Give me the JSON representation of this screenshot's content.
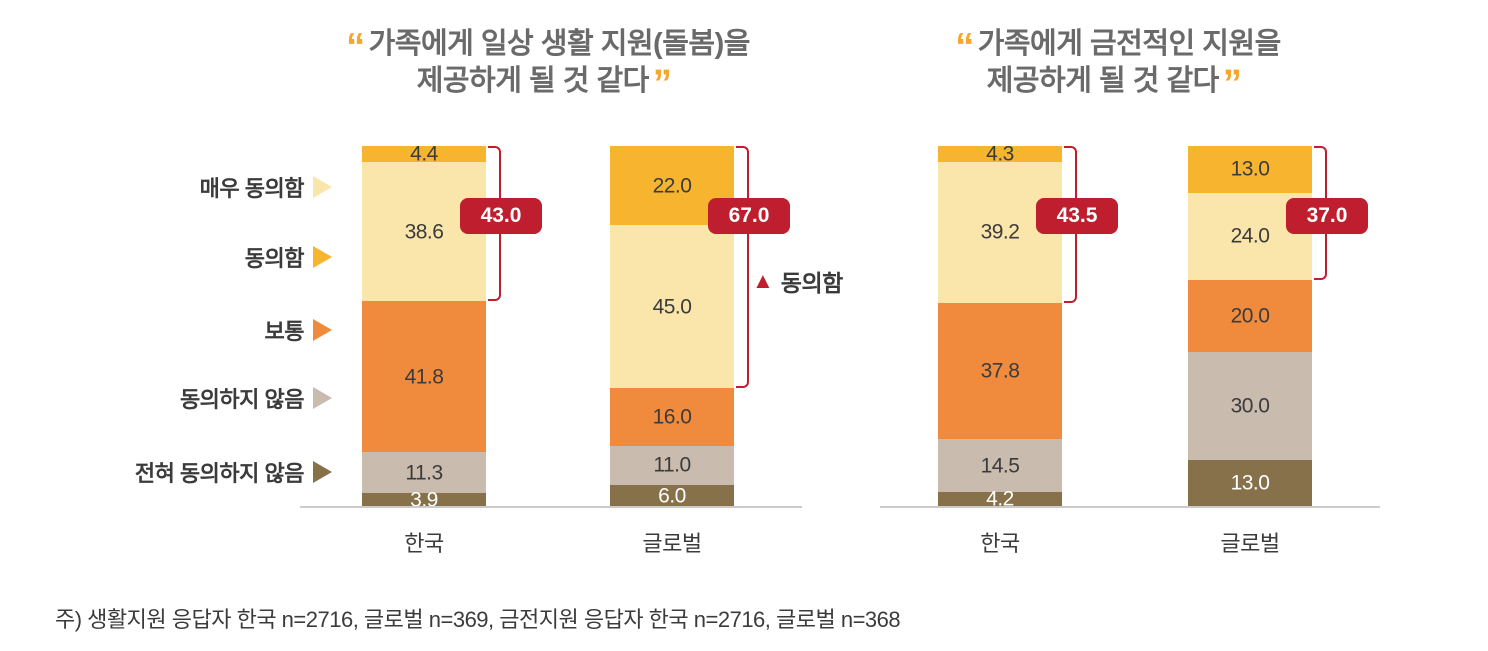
{
  "decor": {
    "quote_open": "“",
    "quote_close": "”"
  },
  "legend": {
    "items": [
      {
        "label": "매우 동의함",
        "color": "#fae6ab"
      },
      {
        "label": "동의함",
        "color": "#f6b42f"
      },
      {
        "label": "보통",
        "color": "#f08b3d"
      },
      {
        "label": "동의하지 않음",
        "color": "#c9bcae"
      },
      {
        "label": "전혀 동의하지 않음",
        "color": "#86714a"
      }
    ]
  },
  "footnote": "주) 생활지원 응답자 한국 n=2716, 글로벌 n=369, 금전지원 응답자 한국 n=2716, 글로벌 n=368",
  "chart_data": [
    {
      "type": "stacked-bar",
      "title": "“가족에게 일상 생활 지원(돌봄)을 제공하게 될 것 같다”",
      "title_lines": [
        "가족에게 일상 생활 지원(돌봄)을",
        "제공하게 될 것 같다"
      ],
      "categories": [
        "한국",
        "글로벌"
      ],
      "ylim": [
        0,
        100
      ],
      "stack_top_to_bottom": [
        "동의함",
        "매우 동의함",
        "보통",
        "동의하지 않음",
        "전혀 동의하지 않음"
      ],
      "series": [
        {
          "name": "매우 동의함",
          "color": "#fae6ab",
          "values": [
            38.6,
            45.0
          ]
        },
        {
          "name": "동의함",
          "color": "#f6b42f",
          "values": [
            4.4,
            22.0
          ]
        },
        {
          "name": "보통",
          "color": "#f08b3d",
          "values": [
            41.8,
            16.0
          ]
        },
        {
          "name": "동의하지 않음",
          "color": "#c9bcae",
          "values": [
            11.3,
            11.0
          ]
        },
        {
          "name": "전혀 동의하지 않음",
          "color": "#86714a",
          "values": [
            3.9,
            6.0
          ]
        }
      ],
      "bars": [
        {
          "label": "한국",
          "badge": "43.0",
          "bracket_span_pct": 43.0,
          "segments": [
            {
              "name": "동의함",
              "value": 4.4,
              "display": "4.4",
              "color": "#f6b42f",
              "label_color": "#3b3b3b"
            },
            {
              "name": "매우 동의함",
              "value": 38.6,
              "display": "38.6",
              "color": "#fae6ab",
              "label_color": "#3b3b3b"
            },
            {
              "name": "보통",
              "value": 41.8,
              "display": "41.8",
              "color": "#f08b3d",
              "label_color": "#3b3b3b"
            },
            {
              "name": "동의하지 않음",
              "value": 11.3,
              "display": "11.3",
              "color": "#c9bcae",
              "label_color": "#3b3b3b"
            },
            {
              "name": "전혀 동의하지 않음",
              "value": 3.9,
              "display": "3.9",
              "color": "#86714a",
              "label_color": "#ffffff"
            }
          ]
        },
        {
          "label": "글로벌",
          "badge": "67.0",
          "bracket_span_pct": 67.0,
          "segments": [
            {
              "name": "동의함",
              "value": 22.0,
              "display": "22.0",
              "color": "#f6b42f",
              "label_color": "#3b3b3b"
            },
            {
              "name": "매우 동의함",
              "value": 45.0,
              "display": "45.0",
              "color": "#fae6ab",
              "label_color": "#3b3b3b"
            },
            {
              "name": "보통",
              "value": 16.0,
              "display": "16.0",
              "color": "#f08b3d",
              "label_color": "#3b3b3b"
            },
            {
              "name": "동의하지 않음",
              "value": 11.0,
              "display": "11.0",
              "color": "#c9bcae",
              "label_color": "#3b3b3b"
            },
            {
              "name": "전혀 동의하지 않음",
              "value": 6.0,
              "display": "6.0",
              "color": "#86714a",
              "label_color": "#ffffff"
            }
          ]
        }
      ],
      "annotation": {
        "marker": "▲",
        "label": "동의함"
      }
    },
    {
      "type": "stacked-bar",
      "title": "“가족에게 금전적인 지원을 제공하게 될 것 같다”",
      "title_lines": [
        "가족에게 금전적인 지원을",
        "제공하게 될 것 같다"
      ],
      "categories": [
        "한국",
        "글로벌"
      ],
      "ylim": [
        0,
        100
      ],
      "stack_top_to_bottom": [
        "동의함",
        "매우 동의함",
        "보통",
        "동의하지 않음",
        "전혀 동의하지 않음"
      ],
      "series": [
        {
          "name": "매우 동의함",
          "color": "#fae6ab",
          "values": [
            39.2,
            24.0
          ]
        },
        {
          "name": "동의함",
          "color": "#f6b42f",
          "values": [
            4.3,
            13.0
          ]
        },
        {
          "name": "보통",
          "color": "#f08b3d",
          "values": [
            37.8,
            20.0
          ]
        },
        {
          "name": "동의하지 않음",
          "color": "#c9bcae",
          "values": [
            14.5,
            30.0
          ]
        },
        {
          "name": "전혀 동의하지 않음",
          "color": "#86714a",
          "values": [
            4.2,
            13.0
          ]
        }
      ],
      "bars": [
        {
          "label": "한국",
          "badge": "43.5",
          "bracket_span_pct": 43.5,
          "segments": [
            {
              "name": "동의함",
              "value": 4.3,
              "display": "4.3",
              "color": "#f6b42f",
              "label_color": "#3b3b3b"
            },
            {
              "name": "매우 동의함",
              "value": 39.2,
              "display": "39.2",
              "color": "#fae6ab",
              "label_color": "#3b3b3b"
            },
            {
              "name": "보통",
              "value": 37.8,
              "display": "37.8",
              "color": "#f08b3d",
              "label_color": "#3b3b3b"
            },
            {
              "name": "동의하지 않음",
              "value": 14.5,
              "display": "14.5",
              "color": "#c9bcae",
              "label_color": "#3b3b3b"
            },
            {
              "name": "전혀 동의하지 않음",
              "value": 4.2,
              "display": "4.2",
              "color": "#86714a",
              "label_color": "#ffffff"
            }
          ]
        },
        {
          "label": "글로벌",
          "badge": "37.0",
          "bracket_span_pct": 37.0,
          "segments": [
            {
              "name": "동의함",
              "value": 13.0,
              "display": "13.0",
              "color": "#f6b42f",
              "label_color": "#3b3b3b"
            },
            {
              "name": "매우 동의함",
              "value": 24.0,
              "display": "24.0",
              "color": "#fae6ab",
              "label_color": "#3b3b3b"
            },
            {
              "name": "보통",
              "value": 20.0,
              "display": "20.0",
              "color": "#f08b3d",
              "label_color": "#3b3b3b"
            },
            {
              "name": "동의하지 않음",
              "value": 30.0,
              "display": "30.0",
              "color": "#c9bcae",
              "label_color": "#3b3b3b"
            },
            {
              "name": "전혀 동의하지 않음",
              "value": 13.0,
              "display": "13.0",
              "color": "#86714a",
              "label_color": "#ffffff"
            }
          ]
        }
      ]
    }
  ]
}
